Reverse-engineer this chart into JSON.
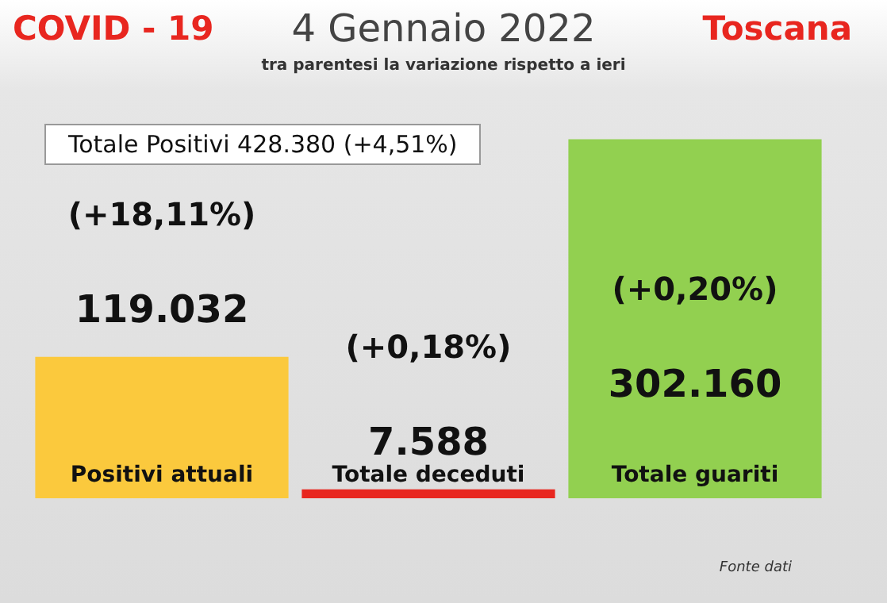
{
  "chart_data": {
    "type": "bar",
    "title": "4 Gennaio 2022",
    "subtitle": "tra parentesi la variazione rispetto a ieri",
    "categories": [
      "Positivi attuali",
      "Totale deceduti",
      "Totale guariti"
    ],
    "values": [
      119032,
      7588,
      302160
    ],
    "colors": [
      "#fbc93d",
      "#e8261f",
      "#92d050"
    ],
    "value_labels": [
      "119.032",
      "7.588",
      "302.160"
    ],
    "annotations": [
      "COVID - 19",
      "Toscana",
      "Totale Positivi    428.380 (+4,51%)",
      "Fonte dati",
      "(+18,11%)",
      "(+0,18%)",
      "(+0,20%)"
    ]
  }
}
